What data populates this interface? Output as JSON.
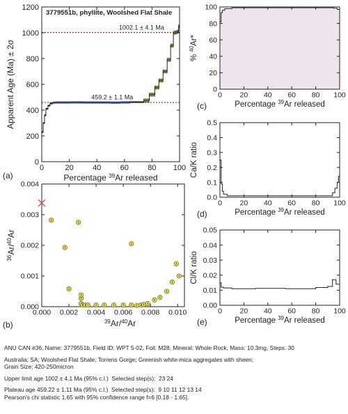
{
  "panels": {
    "a": {
      "letter": "(a)",
      "sample_title": "3779551b, phyllite, Woolshed Flat Shale",
      "ylabel": "Apparent Age (Ma) ± 2σ",
      "xlabel": "Percentage 39Ar released",
      "upper_label": "1002.1 ± 4.1 Ma",
      "plateau_label": "459.2 ± 1.1 Ma"
    },
    "b": {
      "letter": "(b)",
      "ylabel": "36Ar/40Ar",
      "xlabel": "39Ar/40Ar"
    },
    "c": {
      "letter": "(c)",
      "ylabel": "% 40Ar*",
      "xlabel": "Percentage 39Ar released"
    },
    "d": {
      "letter": "(d)",
      "ylabel": "Ca/K ratio",
      "xlabel": "Percentage 39Ar released"
    },
    "e": {
      "letter": "(e)",
      "ylabel": "Cl/K ratio",
      "xlabel": "Percentage 39Ar released"
    }
  },
  "footer": {
    "line1": "ANU CAN #36, Name: 3779551b, Field ID: WPT 5-02, Foil: M28, Mineral: Whole Rock, Mass: 10.3mg, Steps: 30",
    "line2": "Australia; SA; Woolshed Flat Shale; Torrens Gorge; Greenish white-mica aggregates with sheen;",
    "line3": "Grain Size: 420-250micron",
    "line4": "Upper limit age 1002 ± 4.1 Ma (95% c.l.)  Selected step(s):  23 24",
    "line5": "Plateau age 459.22 ± 1.11 Ma (95% c.l.)  Selected step(s):  9 10 11 12 13 14",
    "line6": "Pearson's chi statistic 1.65 with 95% confidence range f=6 [0.18 - 1.65]."
  },
  "chart_data": [
    {
      "panel": "a",
      "type": "line",
      "title": "3779551b, phyllite, Woolshed Flat Shale",
      "xlabel": "Percentage 39Ar released",
      "ylabel": "Apparent Age (Ma) ± 2σ",
      "xlim": [
        0,
        100
      ],
      "ylim": [
        0,
        1200
      ],
      "xticks": [
        0,
        20,
        40,
        60,
        80,
        100
      ],
      "yticks": [
        0,
        200,
        400,
        600,
        800,
        1000,
        1200
      ],
      "steps": [
        {
          "x0": 0,
          "x1": 1,
          "y": 230
        },
        {
          "x0": 1,
          "x1": 2,
          "y": 300
        },
        {
          "x0": 2,
          "x1": 3,
          "y": 360
        },
        {
          "x0": 3,
          "x1": 4.5,
          "y": 410
        },
        {
          "x0": 4.5,
          "x1": 6,
          "y": 435
        },
        {
          "x0": 6,
          "x1": 8,
          "y": 452
        },
        {
          "x0": 8,
          "x1": 10,
          "y": 458
        },
        {
          "x0": 10,
          "x1": 20,
          "y": 459
        },
        {
          "x0": 20,
          "x1": 30,
          "y": 460
        },
        {
          "x0": 30,
          "x1": 40,
          "y": 459
        },
        {
          "x0": 40,
          "x1": 50,
          "y": 459
        },
        {
          "x0": 50,
          "x1": 57,
          "y": 458
        },
        {
          "x0": 57,
          "x1": 64,
          "y": 460
        },
        {
          "x0": 64,
          "x1": 74,
          "y": 462
        },
        {
          "x0": 74,
          "x1": 78,
          "y": 475
        },
        {
          "x0": 78,
          "x1": 82,
          "y": 520
        },
        {
          "x0": 82,
          "x1": 85,
          "y": 575
        },
        {
          "x0": 85,
          "x1": 88,
          "y": 630
        },
        {
          "x0": 88,
          "x1": 91,
          "y": 700
        },
        {
          "x0": 91,
          "x1": 93.5,
          "y": 790
        },
        {
          "x0": 93.5,
          "x1": 95.5,
          "y": 900
        },
        {
          "x0": 95.5,
          "x1": 97,
          "y": 1000
        },
        {
          "x0": 97,
          "x1": 98.5,
          "y": 1004
        },
        {
          "x0": 98.5,
          "x1": 99.3,
          "y": 1010
        },
        {
          "x0": 99.3,
          "x1": 100,
          "y": 1050
        }
      ],
      "plateau": {
        "y": 459.2,
        "x0": 10,
        "x1": 64
      },
      "upper_limit": {
        "y": 1002.1,
        "x0": 95.5,
        "x1": 98.5
      },
      "reference_lines": [
        459.2,
        1002.1
      ],
      "colors": {
        "plateau": "#2b3f9e",
        "step_fill": "#8aa83a",
        "line": "#222222",
        "ref": "#7a3a1e"
      }
    },
    {
      "panel": "b",
      "type": "scatter",
      "xlabel": "39Ar/40Ar",
      "ylabel": "36Ar/40Ar",
      "xlim": [
        0,
        0.0105
      ],
      "ylim": [
        0,
        0.004
      ],
      "xticks": [
        0.0,
        0.002,
        0.004,
        0.006,
        0.008,
        0.01
      ],
      "yticks": [
        0.0,
        0.001,
        0.002,
        0.003,
        0.004
      ],
      "x": [
        0.0007,
        0.0017,
        0.0027,
        0.0029,
        0.0066,
        0.002,
        0.0029,
        0.0029,
        0.003,
        0.0032,
        0.0034,
        0.004,
        0.0046,
        0.0053,
        0.006,
        0.0066,
        0.007,
        0.0073,
        0.0075,
        0.0078,
        0.0083,
        0.0087,
        0.0092,
        0.0096,
        0.0099,
        0.0101
      ],
      "y": [
        0.00282,
        0.00193,
        0.00275,
        0.00027,
        0.00205,
        0.00058,
        0.00038,
        0.0001,
        5e-05,
        5e-05,
        5e-05,
        5e-05,
        5e-05,
        5e-05,
        5e-05,
        5e-05,
        4e-05,
        5e-05,
        7e-05,
        0.0001,
        0.00022,
        0.0003,
        0.0005,
        0.0008,
        0.0014,
        0.001
      ],
      "intercept": {
        "x": 0.0,
        "y": 0.00338
      },
      "colors": {
        "point": "#f0e22a",
        "point_edge": "#555555",
        "intercept": "#e8573c"
      }
    },
    {
      "panel": "c",
      "type": "line",
      "xlabel": "Percentage 39Ar released",
      "ylabel": "% 40Ar*",
      "xlim": [
        0,
        100
      ],
      "ylim": [
        0,
        100
      ],
      "xticks": [
        0,
        20,
        40,
        60,
        80,
        100
      ],
      "yticks": [
        0,
        20,
        40,
        60,
        80,
        100
      ],
      "steps": [
        {
          "x0": 0,
          "x1": 1,
          "y": 82
        },
        {
          "x0": 1,
          "x1": 2,
          "y": 93
        },
        {
          "x0": 2,
          "x1": 4,
          "y": 96
        },
        {
          "x0": 4,
          "x1": 10,
          "y": 98
        },
        {
          "x0": 10,
          "x1": 95,
          "y": 99
        },
        {
          "x0": 95,
          "x1": 98,
          "y": 98.5
        },
        {
          "x0": 98,
          "x1": 100,
          "y": 97
        }
      ],
      "colors": {
        "fill": "#efe4ee",
        "line": "#222222"
      }
    },
    {
      "panel": "d",
      "type": "line",
      "xlabel": "Percentage 39Ar released",
      "ylabel": "Ca/K ratio",
      "xlim": [
        0,
        100
      ],
      "ylim": [
        0,
        0.5
      ],
      "xticks": [
        0,
        20,
        40,
        60,
        80,
        100
      ],
      "yticks": [
        0.0,
        0.1,
        0.2,
        0.3,
        0.4,
        0.5
      ],
      "steps": [
        {
          "x0": 0,
          "x1": 1,
          "y": 0.25
        },
        {
          "x0": 1,
          "x1": 2,
          "y": 0.09
        },
        {
          "x0": 2,
          "x1": 3,
          "y": 0.04
        },
        {
          "x0": 3,
          "x1": 6,
          "y": 0.02
        },
        {
          "x0": 6,
          "x1": 94,
          "y": 0.01
        },
        {
          "x0": 94,
          "x1": 96,
          "y": 0.03
        },
        {
          "x0": 96,
          "x1": 98,
          "y": 0.06
        },
        {
          "x0": 98,
          "x1": 99,
          "y": 0.1
        },
        {
          "x0": 99,
          "x1": 100,
          "y": 0.14
        }
      ],
      "colors": {
        "line": "#222222"
      }
    },
    {
      "panel": "e",
      "type": "line",
      "xlabel": "Percentage 39Ar released",
      "ylabel": "Cl/K ratio",
      "xlim": [
        0,
        100
      ],
      "ylim": [
        0,
        0.05
      ],
      "xticks": [
        0,
        20,
        40,
        60,
        80,
        100
      ],
      "yticks": [
        0.0,
        0.01,
        0.02,
        0.03,
        0.04,
        0.05
      ],
      "steps": [
        {
          "x0": 0,
          "x1": 1,
          "y": 0.015
        },
        {
          "x0": 1,
          "x1": 3,
          "y": 0.012
        },
        {
          "x0": 3,
          "x1": 10,
          "y": 0.0115
        },
        {
          "x0": 10,
          "x1": 30,
          "y": 0.011
        },
        {
          "x0": 30,
          "x1": 55,
          "y": 0.0112
        },
        {
          "x0": 55,
          "x1": 80,
          "y": 0.011
        },
        {
          "x0": 80,
          "x1": 90,
          "y": 0.0118
        },
        {
          "x0": 90,
          "x1": 94,
          "y": 0.0125
        },
        {
          "x0": 94,
          "x1": 97,
          "y": 0.017
        },
        {
          "x0": 97,
          "x1": 100,
          "y": 0.014
        }
      ],
      "colors": {
        "line": "#222222"
      }
    }
  ]
}
